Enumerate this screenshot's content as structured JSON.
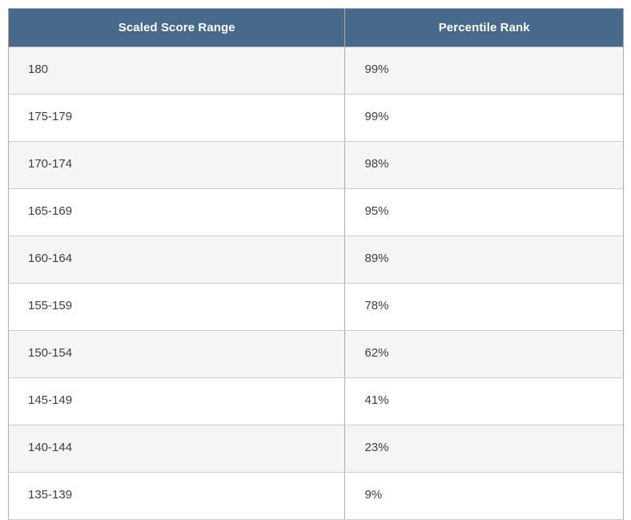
{
  "table": {
    "columns": [
      {
        "label": "Scaled Score Range"
      },
      {
        "label": "Percentile Rank"
      }
    ],
    "rows": [
      {
        "score_range": "180",
        "percentile": "99%"
      },
      {
        "score_range": "175-179",
        "percentile": "99%"
      },
      {
        "score_range": "170-174",
        "percentile": "98%"
      },
      {
        "score_range": "165-169",
        "percentile": "95%"
      },
      {
        "score_range": "160-164",
        "percentile": "89%"
      },
      {
        "score_range": "155-159",
        "percentile": "78%"
      },
      {
        "score_range": "150-154",
        "percentile": "62%"
      },
      {
        "score_range": "145-149",
        "percentile": "41%"
      },
      {
        "score_range": "140-144",
        "percentile": "23%"
      },
      {
        "score_range": "135-139",
        "percentile": "9%"
      }
    ],
    "colors": {
      "header_bg": "#46698c",
      "header_text": "#ffffff",
      "header_divider": "#8c8c90",
      "row_bg": "#ffffff",
      "row_alt_bg": "#f5f5f6",
      "text": "#3c4043",
      "border_outer": "#aaaaaf",
      "border_inner": "#cccccc"
    }
  },
  "chart_data": {
    "type": "table",
    "title": "",
    "columns": [
      "Scaled Score Range",
      "Percentile Rank"
    ],
    "categories": [
      "180",
      "175-179",
      "170-174",
      "165-169",
      "160-164",
      "155-159",
      "150-154",
      "145-149",
      "140-144",
      "135-139"
    ],
    "values": [
      99,
      99,
      98,
      95,
      89,
      78,
      62,
      41,
      23,
      9
    ],
    "value_unit": "%",
    "rows": [
      [
        "180",
        "99%"
      ],
      [
        "175-179",
        "99%"
      ],
      [
        "170-174",
        "98%"
      ],
      [
        "165-169",
        "95%"
      ],
      [
        "160-164",
        "89%"
      ],
      [
        "155-159",
        "78%"
      ],
      [
        "150-154",
        "62%"
      ],
      [
        "145-149",
        "41%"
      ],
      [
        "140-144",
        "23%"
      ],
      [
        "135-139",
        "9%"
      ]
    ]
  }
}
